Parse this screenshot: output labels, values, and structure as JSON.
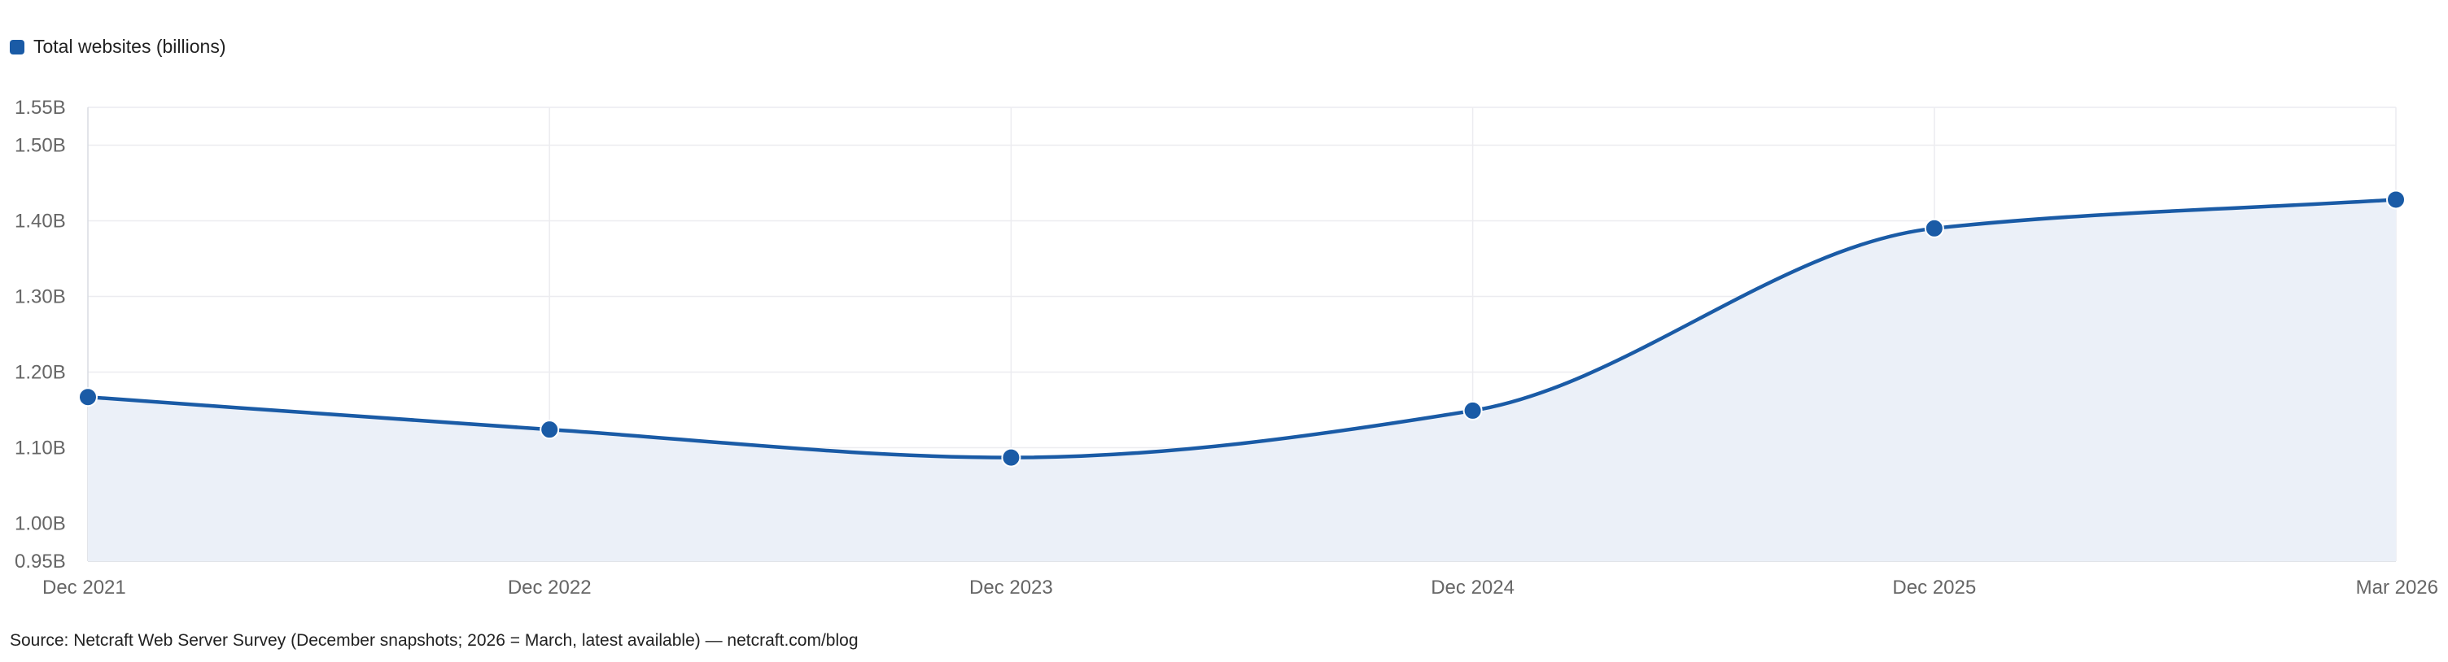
{
  "chart_data": {
    "type": "area",
    "categories": [
      "Dec 2021",
      "Dec 2022",
      "Dec 2023",
      "Dec 2024",
      "Dec 2025",
      "Mar 2026"
    ],
    "series": [
      {
        "name": "Total websites (billions)",
        "values": [
          1.167,
          1.124,
          1.087,
          1.149,
          1.39,
          1.428
        ],
        "color": "#1a5ba6",
        "fill_color": "#ebf0f8"
      }
    ],
    "ylim": [
      0.95,
      1.55
    ],
    "yticks": [
      0.95,
      1.0,
      1.1,
      1.2,
      1.3,
      1.4,
      1.5,
      1.55
    ],
    "ytick_labels": [
      "0.95B",
      "1.00B",
      "1.10B",
      "1.20B",
      "1.30B",
      "1.40B",
      "1.50B",
      "1.55B"
    ],
    "grid": true,
    "legend_position": "top-left",
    "source_note": "Source: Netcraft Web Server Survey (December snapshots; 2026 = March, latest available) — netcraft.com/blog"
  }
}
